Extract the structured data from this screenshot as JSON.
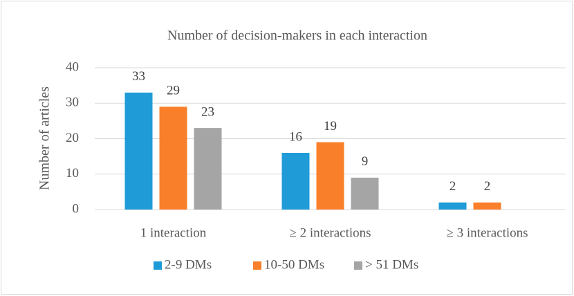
{
  "chart_data": {
    "type": "bar",
    "title": "Number of decision-makers in each interaction",
    "y_label": "Number of articles",
    "categories": [
      "1 interaction",
      "≥ 2 interactions",
      "≥ 3 interactions"
    ],
    "series": [
      {
        "name": "2-9 DMs",
        "color": "#1f9bd7",
        "values": [
          33,
          16,
          2
        ]
      },
      {
        "name": "10-50 DMs",
        "color": "#f97f2a",
        "values": [
          29,
          19,
          2
        ]
      },
      {
        "name": "> 51 DMs",
        "color": "#a5a5a5",
        "values": [
          23,
          9,
          null
        ]
      }
    ],
    "ylim": [
      0,
      40
    ],
    "yticks": [
      0,
      10,
      20,
      30,
      40
    ],
    "grid": true,
    "legend": "bottom"
  }
}
